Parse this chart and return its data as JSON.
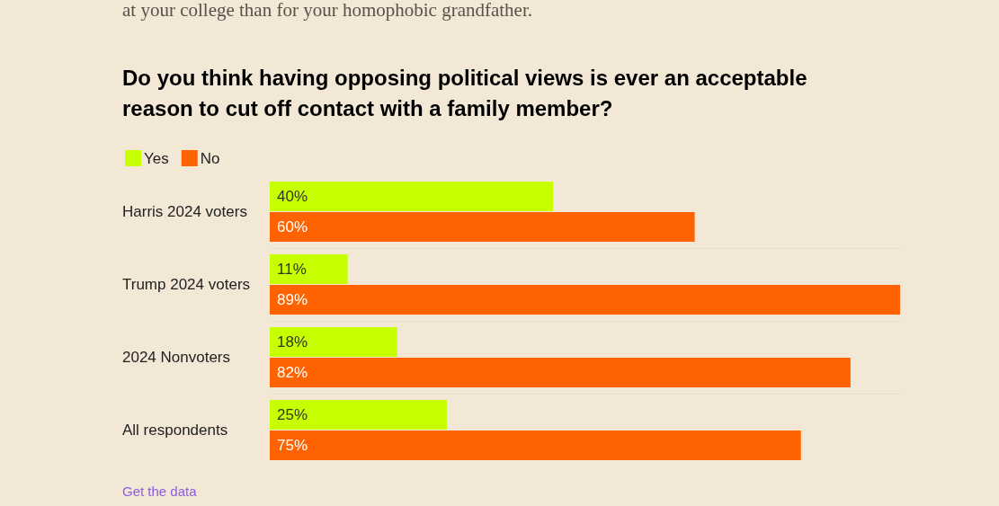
{
  "chart_data": {
    "type": "bar",
    "orientation": "horizontal",
    "title": "Do you think having opposing political views is ever an acceptable reason to cut off contact with a family member?",
    "categories": [
      "Harris 2024 voters",
      "Trump 2024 voters",
      "2024 Nonvoters",
      "All respondents"
    ],
    "series": [
      {
        "name": "Yes",
        "color": "#c6ff00",
        "values": [
          40,
          11,
          18,
          25
        ],
        "value_labels": [
          "40%",
          "11%",
          "18%",
          "25%"
        ]
      },
      {
        "name": "No",
        "color": "#ff6200",
        "values": [
          60,
          89,
          82,
          75
        ],
        "value_labels": [
          "60%",
          "89%",
          "82%",
          "75%"
        ]
      }
    ],
    "legend": "top left",
    "grid": "y",
    "tick_labels": "y",
    "annotations": [
      "at your college than for your homophobic grandfather.",
      "Get the data"
    ]
  }
}
